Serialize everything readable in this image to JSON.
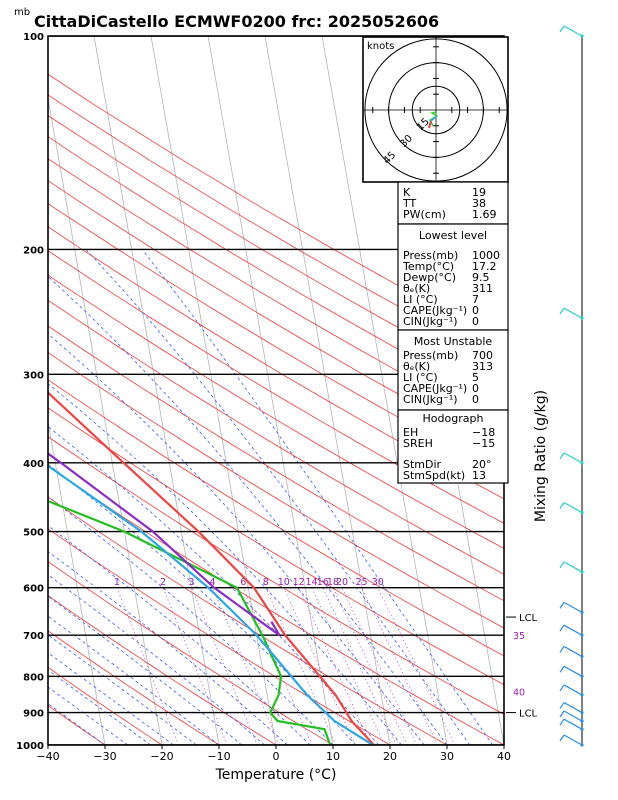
{
  "title": "CittaDiCastello ECMWF0200  frc: 2025052606",
  "units_top": "mb",
  "chart_data": {
    "type": "line",
    "title": "CittaDiCastello ECMWF0200  frc: 2025052606",
    "xlabel": "Temperature (°C)",
    "ylabel": "",
    "x_ticks": [
      "−40",
      "−30",
      "−20",
      "−10",
      "0",
      "10",
      "20",
      "30",
      "40"
    ],
    "x_tick_values": [
      -40,
      -30,
      -20,
      -10,
      0,
      10,
      20,
      30,
      40
    ],
    "xlim": [
      -40,
      40
    ],
    "y_ticks": [
      "100",
      "200",
      "300",
      "400",
      "500",
      "600",
      "700",
      "800",
      "900",
      "1000"
    ],
    "y_tick_values": [
      100,
      200,
      300,
      400,
      500,
      600,
      700,
      800,
      900,
      1000
    ],
    "ylim": [
      1000,
      100
    ],
    "y_scale": "log",
    "grid": true,
    "series": [
      {
        "name": "",
        "color": "#ef4444",
        "points": [
          [
            1000,
            17.2
          ],
          [
            925,
            14
          ],
          [
            850,
            12
          ],
          [
            700,
            5
          ],
          [
            600,
            1
          ],
          [
            500,
            -7
          ],
          [
            400,
            -18
          ],
          [
            300,
            -32
          ],
          [
            250,
            -42
          ],
          [
            200,
            -44
          ],
          [
            150,
            -44
          ],
          [
            100,
            -36
          ]
        ]
      },
      {
        "name": "",
        "color": "#22c01e",
        "points": [
          [
            1000,
            9.5
          ],
          [
            950,
            9
          ],
          [
            925,
            1
          ],
          [
            900,
            0
          ],
          [
            850,
            2
          ],
          [
            800,
            3
          ],
          [
            700,
            1
          ],
          [
            600,
            -2
          ],
          [
            500,
            -20
          ],
          [
            400,
            -48
          ],
          [
            300,
            -60
          ],
          [
            200,
            -70
          ],
          [
            100,
            -73
          ]
        ]
      },
      {
        "name": "",
        "color": "#2aa7e8",
        "points": [
          [
            1000,
            17
          ],
          [
            925,
            11
          ],
          [
            850,
            7
          ],
          [
            700,
            0
          ],
          [
            600,
            -7
          ],
          [
            500,
            -17
          ],
          [
            400,
            -32
          ],
          [
            300,
            -50
          ],
          [
            200,
            -72
          ],
          [
            130,
            -90
          ]
        ]
      },
      {
        "name": "",
        "color": "#8b2cc8",
        "points": [
          [
            670,
            3
          ],
          [
            700,
            4
          ],
          [
            600,
            -6
          ],
          [
            500,
            -15
          ],
          [
            400,
            -29
          ],
          [
            300,
            -48
          ],
          [
            200,
            -70
          ],
          [
            100,
            -98
          ]
        ]
      }
    ],
    "mixing_ratio_labels": [
      "1",
      "2",
      "3",
      "4",
      "6",
      "8",
      "10",
      "12",
      "14",
      "16",
      "18",
      "20",
      "25",
      "30"
    ],
    "mixing_ratio_values": [
      1,
      2,
      3,
      4,
      6,
      8,
      10,
      12,
      14,
      16,
      18,
      20,
      25,
      30
    ],
    "theta_e_labels": [
      {
        "text": "35",
        "p": 700
      },
      {
        "text": "40",
        "p": 840
      }
    ],
    "lcl_markers": [
      {
        "text": "LCL",
        "p": 660
      },
      {
        "text": "LCL",
        "p": 900
      }
    ],
    "mixing_ratio_axis_label": "Mixing Ratio (g/kg)"
  },
  "hodograph": {
    "units": "knots",
    "rings": [
      15,
      30,
      45
    ],
    "ring_labels": [
      "15",
      "30",
      "45"
    ]
  },
  "indices": {
    "top": [
      {
        "label": "K",
        "value": "19"
      },
      {
        "label": "TT",
        "value": "38"
      },
      {
        "label": "PW(cm)",
        "value": "1.69"
      }
    ],
    "lowest": {
      "heading": "Lowest level",
      "rows": [
        {
          "label": "Press(mb)",
          "value": "1000"
        },
        {
          "label": "Temp(°C)",
          "value": "17.2"
        },
        {
          "label": "Dewp(°C)",
          "value": "9.5"
        },
        {
          "label": "θₑ(K)",
          "value": "311"
        },
        {
          "label": "LI (°C)",
          "value": "7"
        },
        {
          "label": "CAPE(Jkg⁻¹)",
          "value": "0"
        },
        {
          "label": "CIN(Jkg⁻¹)",
          "value": "0"
        }
      ]
    },
    "unstable": {
      "heading": "Most Unstable",
      "rows": [
        {
          "label": "Press(mb)",
          "value": "700"
        },
        {
          "label": "θₑ(K)",
          "value": "313"
        },
        {
          "label": "LI (°C)",
          "value": "5"
        },
        {
          "label": "CAPE(Jkg⁻¹)",
          "value": "0"
        },
        {
          "label": "CIN(Jkg⁻¹)",
          "value": "0"
        }
      ]
    },
    "hodo": {
      "heading": "Hodograph",
      "rows": [
        {
          "label": "EH",
          "value": "−18"
        },
        {
          "label": "SREH",
          "value": "−15"
        },
        {
          "label": "StmDir",
          "value": "20°"
        },
        {
          "label": "StmSpd(kt)",
          "value": "13"
        }
      ]
    }
  },
  "wind_profile": {
    "colors": [
      "#22d3c5",
      "#2a8fe8"
    ]
  }
}
